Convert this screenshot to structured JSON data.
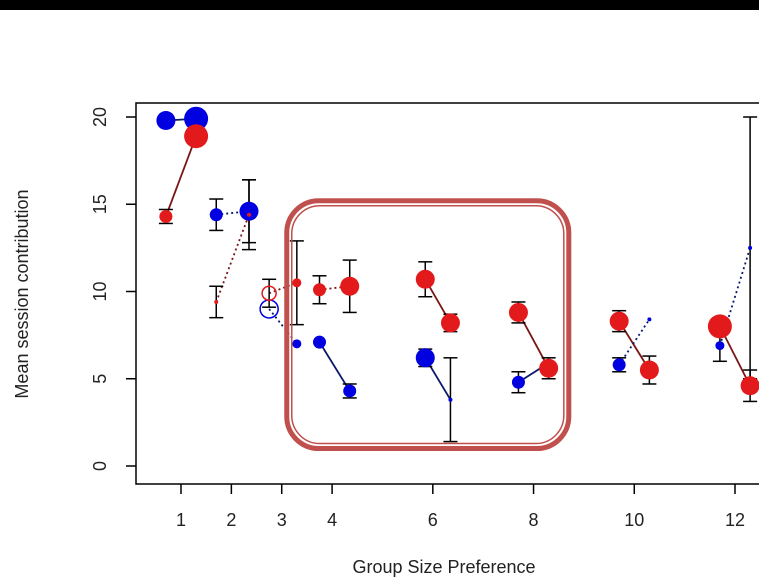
{
  "colors": {
    "blue": "#0000e0",
    "red": "#e31a1c",
    "highlight_box": "#c0504d",
    "top_bar": "#000000",
    "axis": "#000000",
    "error_bar": "#000000",
    "blue_connector": "#0a1a6a",
    "red_connector": "#7a1515"
  },
  "chart_data": {
    "type": "scatter",
    "title": "",
    "xlabel": "Group Size Preference",
    "ylabel": "Mean session contribution",
    "xlim": [
      0.3,
      12.5
    ],
    "ylim": [
      -1,
      21
    ],
    "xticks": [
      1,
      2,
      3,
      4,
      6,
      8,
      10,
      12
    ],
    "yticks": [
      0,
      5,
      10,
      15,
      20
    ],
    "grid": false,
    "legend": "none",
    "series": [
      {
        "color": "blue",
        "points": [
          {
            "x": 0.7,
            "y": 19.8,
            "err": 0,
            "size": "medium"
          },
          {
            "x": 1.3,
            "y": 19.9,
            "err": 0,
            "size": "large"
          },
          {
            "x": 1.7,
            "y": 14.4,
            "err": 0.9,
            "size": "small"
          },
          {
            "x": 2.35,
            "y": 14.6,
            "err": 1.8,
            "size": "medium"
          },
          {
            "x": 2.75,
            "y": 9.0,
            "err": 0,
            "size": "open-medium"
          },
          {
            "x": 3.3,
            "y": 7.0,
            "err": 0,
            "size": "tiny"
          },
          {
            "x": 3.75,
            "y": 7.1,
            "err": 0,
            "size": "small"
          },
          {
            "x": 4.35,
            "y": 4.3,
            "err": 0.4,
            "size": "small"
          },
          {
            "x": 5.85,
            "y": 6.2,
            "err": 0.5,
            "size": "medium"
          },
          {
            "x": 6.35,
            "y": 3.8,
            "err": 2.4,
            "size": "dot"
          },
          {
            "x": 7.7,
            "y": 4.8,
            "err": 0.6,
            "size": "small"
          },
          {
            "x": 8.3,
            "y": 5.9,
            "err": 0,
            "size": "dot"
          },
          {
            "x": 9.7,
            "y": 5.8,
            "err": 0.4,
            "size": "small"
          },
          {
            "x": 10.3,
            "y": 8.4,
            "err": 0,
            "size": "dot"
          },
          {
            "x": 11.7,
            "y": 6.9,
            "err": 0.9,
            "size": "tiny"
          },
          {
            "x": 12.3,
            "y": 12.5,
            "err": 7.5,
            "size": "dot"
          }
        ]
      },
      {
        "color": "red",
        "points": [
          {
            "x": 0.7,
            "y": 14.3,
            "err": 0.4,
            "size": "small"
          },
          {
            "x": 1.3,
            "y": 18.9,
            "err": 0.4,
            "size": "large"
          },
          {
            "x": 1.7,
            "y": 9.4,
            "err": 0.9,
            "size": "dot"
          },
          {
            "x": 2.35,
            "y": 14.4,
            "err": 2.0,
            "size": "dot"
          },
          {
            "x": 2.75,
            "y": 9.9,
            "err": 0.8,
            "size": "open-small"
          },
          {
            "x": 3.3,
            "y": 10.5,
            "err": 2.4,
            "size": "tiny"
          },
          {
            "x": 3.75,
            "y": 10.1,
            "err": 0.8,
            "size": "small"
          },
          {
            "x": 4.35,
            "y": 10.3,
            "err": 1.5,
            "size": "medium"
          },
          {
            "x": 5.85,
            "y": 10.7,
            "err": 1.0,
            "size": "medium"
          },
          {
            "x": 6.35,
            "y": 8.2,
            "err": 0.5,
            "size": "medium"
          },
          {
            "x": 7.7,
            "y": 8.8,
            "err": 0.6,
            "size": "medium"
          },
          {
            "x": 8.3,
            "y": 5.6,
            "err": 0.6,
            "size": "medium"
          },
          {
            "x": 9.7,
            "y": 8.3,
            "err": 0.6,
            "size": "medium"
          },
          {
            "x": 10.3,
            "y": 5.5,
            "err": 0.8,
            "size": "medium"
          },
          {
            "x": 11.7,
            "y": 8.0,
            "err": 0.2,
            "size": "large"
          },
          {
            "x": 12.3,
            "y": 4.6,
            "err": 0.9,
            "size": "medium"
          }
        ]
      }
    ],
    "connectors": [
      {
        "series": "red",
        "from": 0,
        "to": 1,
        "style": "solid"
      },
      {
        "series": "red",
        "from": 2,
        "to": 3,
        "style": "dotted"
      },
      {
        "series": "red",
        "from": 4,
        "to": 5,
        "style": "dotted"
      },
      {
        "series": "red",
        "from": 6,
        "to": 7,
        "style": "dotted"
      },
      {
        "series": "red",
        "from": 8,
        "to": 9,
        "style": "solid"
      },
      {
        "series": "red",
        "from": 10,
        "to": 11,
        "style": "solid"
      },
      {
        "series": "red",
        "from": 12,
        "to": 13,
        "style": "solid"
      },
      {
        "series": "red",
        "from": 14,
        "to": 15,
        "style": "solid"
      },
      {
        "series": "blue",
        "from": 0,
        "to": 1,
        "style": "solid"
      },
      {
        "series": "blue",
        "from": 2,
        "to": 3,
        "style": "dotted"
      },
      {
        "series": "blue",
        "from": 4,
        "to": 5,
        "style": "dotted"
      },
      {
        "series": "blue",
        "from": 6,
        "to": 7,
        "style": "solid"
      },
      {
        "series": "blue",
        "from": 8,
        "to": 9,
        "style": "solid"
      },
      {
        "series": "blue",
        "from": 10,
        "to": 11,
        "style": "solid"
      },
      {
        "series": "blue",
        "from": 12,
        "to": 13,
        "style": "dotted"
      },
      {
        "series": "blue",
        "from": 14,
        "to": 15,
        "style": "dotted"
      }
    ],
    "highlight": {
      "x_range": [
        3.1,
        8.7
      ],
      "y_range": [
        1.0,
        15.2
      ]
    }
  }
}
